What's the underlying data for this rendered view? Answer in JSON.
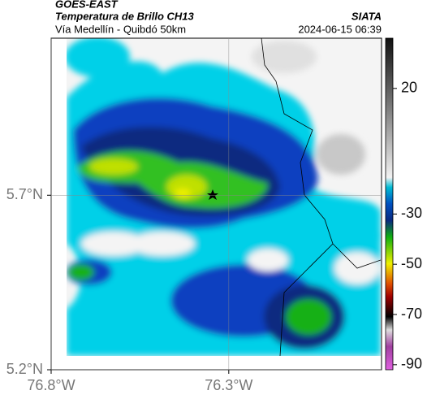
{
  "header": {
    "source": "GOES-EAST",
    "title": "Temperatura de Brillo CH13",
    "subtitle": "Vía Medellín - Quibdó 50km",
    "org": "SIATA",
    "datetime": "2024-06-15 06:39"
  },
  "map": {
    "lon_range": [
      -76.8,
      -75.87
    ],
    "lat_range": [
      5.2,
      6.15
    ],
    "lon_ticks": [
      {
        "value": -76.8,
        "label": "76.8°W"
      },
      {
        "value": -76.3,
        "label": "76.3°W"
      }
    ],
    "lat_ticks": [
      {
        "value": 5.7,
        "label": "5.7°N"
      },
      {
        "value": 5.2,
        "label": "5.2°N"
      }
    ]
  },
  "colorbar": {
    "range": [
      -92,
      40
    ],
    "ticks": [
      20,
      -30,
      -50,
      -70,
      -90
    ]
  }
}
